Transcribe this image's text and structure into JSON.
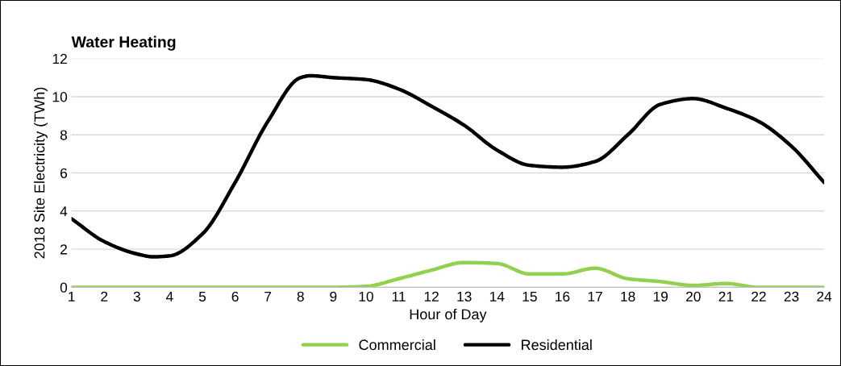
{
  "chart_data": {
    "type": "line",
    "title": "Water Heating",
    "xlabel": "Hour of Day",
    "ylabel": "2018 Site Electricity (TWh)",
    "x": [
      1,
      2,
      3,
      3.5,
      4,
      5,
      6,
      7,
      8,
      8.3,
      9,
      10,
      11,
      12,
      13,
      14,
      15,
      16,
      17,
      18,
      19,
      20,
      21,
      22,
      23,
      24
    ],
    "series": [
      {
        "name": "Commercial",
        "color": "#92d050",
        "values": [
          0,
          0,
          0,
          0,
          0,
          0,
          0,
          0,
          0,
          0,
          0,
          0.05,
          0.45,
          0.9,
          1.3,
          1.25,
          0.7,
          0.7,
          1.0,
          0.45,
          0.3,
          0.1,
          0.2,
          0,
          0,
          0
        ]
      },
      {
        "name": "Residential",
        "color": "#000000",
        "values": [
          3.6,
          2.4,
          1.75,
          1.6,
          1.65,
          2.8,
          5.5,
          8.7,
          11.0,
          11.1,
          11.0,
          10.9,
          10.4,
          9.5,
          8.5,
          7.2,
          6.4,
          6.3,
          6.6,
          8.0,
          9.6,
          9.9,
          9.4,
          8.7,
          7.4,
          5.5
        ]
      }
    ],
    "xlim": [
      1,
      24
    ],
    "xticks": [
      1,
      2,
      3,
      4,
      5,
      6,
      7,
      8,
      9,
      10,
      11,
      12,
      13,
      14,
      15,
      16,
      17,
      18,
      19,
      20,
      21,
      22,
      23,
      24
    ],
    "ylim": [
      0,
      12
    ],
    "yticks": [
      0,
      2,
      4,
      6,
      8,
      10,
      12
    ],
    "grid": "y",
    "legend": "bottom",
    "marker": "none",
    "line_style": "solid"
  }
}
